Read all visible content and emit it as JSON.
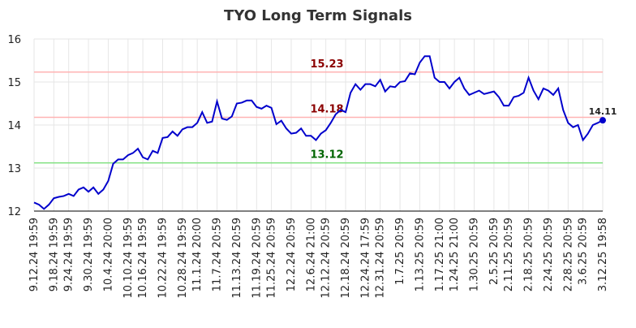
{
  "chart_data": {
    "type": "line",
    "title": "TYO Long Term Signals",
    "categories": [
      "9.12.24 19:59",
      null,
      null,
      null,
      "9.18.24 19:59",
      null,
      null,
      "9.24.24 19:59",
      null,
      null,
      null,
      "9.30.24 19:59",
      null,
      null,
      null,
      "10.4.24 20:00",
      null,
      null,
      null,
      "10.10.24 19:59",
      null,
      null,
      "10.16.24 19:59",
      null,
      null,
      null,
      "10.22.24 19:59",
      null,
      null,
      null,
      "10.28.24 19:59",
      null,
      null,
      "11.1.24 20:00",
      null,
      null,
      null,
      "11.7.24 20:59",
      null,
      null,
      null,
      "11.13.24 20:59",
      null,
      null,
      null,
      "11.19.24 20:59",
      null,
      null,
      "11.25.24 20:59",
      null,
      null,
      null,
      "12.2.24 20:59",
      null,
      null,
      null,
      "12.6.24 21:00",
      null,
      null,
      "12.12.24 20:59",
      null,
      null,
      null,
      "12.18.24 20:59",
      null,
      null,
      null,
      "12.24.24 17:59",
      null,
      null,
      "12.31.24 20:59",
      null,
      null,
      null,
      "1.7.25 20:59",
      null,
      null,
      null,
      "1.13.25 20:59",
      null,
      null,
      null,
      "1.17.25 21:00",
      null,
      null,
      "1.24.25 21:00",
      null,
      null,
      null,
      "1.30.25 20:59",
      null,
      null,
      null,
      "2.5.25 20:59",
      null,
      null,
      "2.11.25 20:59",
      null,
      null,
      null,
      "2.18.25 20:59",
      null,
      null,
      null,
      "2.24.25 20:59",
      null,
      null,
      null,
      "2.28.25 20:59",
      null,
      null,
      "3.6.25 20:59",
      null,
      null,
      null,
      "3.12.25 19:58"
    ],
    "series": [
      {
        "color": "#0000cc",
        "values": [
          12.2,
          12.15,
          12.05,
          12.15,
          12.3,
          12.33,
          12.35,
          12.4,
          12.35,
          12.5,
          12.55,
          12.45,
          12.55,
          12.4,
          12.5,
          12.7,
          13.1,
          13.2,
          13.2,
          13.3,
          13.35,
          13.45,
          13.25,
          13.2,
          13.4,
          13.35,
          13.7,
          13.72,
          13.85,
          13.75,
          13.9,
          13.95,
          13.95,
          14.05,
          14.3,
          14.05,
          14.08,
          14.55,
          14.15,
          14.12,
          14.2,
          14.5,
          14.52,
          14.57,
          14.57,
          14.42,
          14.38,
          14.45,
          14.4,
          14.02,
          14.1,
          13.92,
          13.8,
          13.82,
          13.92,
          13.75,
          13.75,
          13.65,
          13.8,
          13.88,
          14.05,
          14.25,
          14.35,
          14.3,
          14.75,
          14.95,
          14.82,
          14.95,
          14.95,
          14.9,
          15.05,
          14.78,
          14.9,
          14.88,
          15.0,
          15.02,
          15.2,
          15.18,
          15.45,
          15.6,
          15.6,
          15.1,
          15.0,
          15.0,
          14.85,
          15.0,
          15.1,
          14.85,
          14.7,
          14.75,
          14.8,
          14.72,
          14.75,
          14.78,
          14.65,
          14.45,
          14.45,
          14.65,
          14.68,
          14.75,
          15.1,
          14.8,
          14.6,
          14.85,
          14.8,
          14.7,
          14.85,
          14.35,
          14.05,
          13.95,
          14.0,
          13.65,
          13.8,
          14.0,
          14.05,
          14.11
        ]
      }
    ],
    "hlines": [
      {
        "value": 15.23,
        "color": "#ffb3b3",
        "label_color": "#8b0000"
      },
      {
        "value": 14.18,
        "color": "#ffb3b3",
        "label_color": "#8b0000"
      },
      {
        "value": 13.12,
        "color": "#80e080",
        "label_color": "#006400"
      }
    ],
    "ylim": [
      12,
      16
    ],
    "yticks": [
      12,
      13,
      14,
      15,
      16
    ],
    "grid": true
  }
}
